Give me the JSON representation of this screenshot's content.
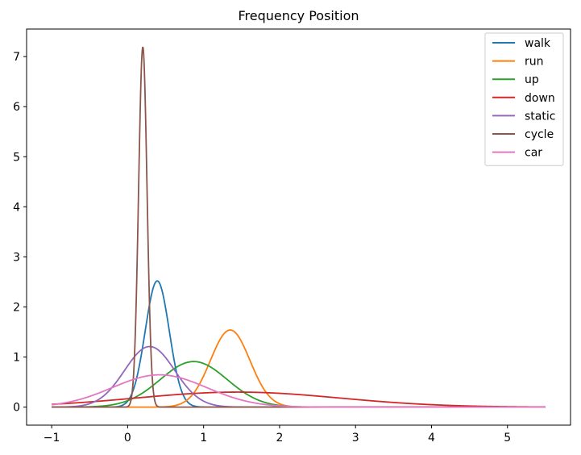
{
  "chart_data": {
    "type": "line",
    "title": "Frequency Position",
    "xlabel": "",
    "ylabel": "",
    "xlim": [
      -1.33,
      5.83
    ],
    "ylim": [
      -0.36,
      7.55
    ],
    "x_range": [
      -1,
      5.5
    ],
    "xticks": [
      -1,
      0,
      1,
      2,
      3,
      4,
      5
    ],
    "xtick_labels": [
      "−1",
      "0",
      "1",
      "2",
      "3",
      "4",
      "5"
    ],
    "yticks": [
      0,
      1,
      2,
      3,
      4,
      5,
      6,
      7
    ],
    "ytick_labels": [
      "0",
      "1",
      "2",
      "3",
      "4",
      "5",
      "6",
      "7"
    ],
    "grid": false,
    "legend_position": "top-right",
    "series": [
      {
        "name": "walk",
        "color": "#1f77b4",
        "distribution": "normal",
        "mean": 0.39,
        "std": 0.158,
        "peak": 2.52
      },
      {
        "name": "run",
        "color": "#ff7f0e",
        "distribution": "normal",
        "mean": 1.35,
        "std": 0.26,
        "peak": 1.54
      },
      {
        "name": "up",
        "color": "#2ca02c",
        "distribution": "normal",
        "mean": 0.87,
        "std": 0.44,
        "peak": 0.91
      },
      {
        "name": "down",
        "color": "#d62728",
        "distribution": "normal",
        "mean": 1.45,
        "std": 1.34,
        "peak": 0.3
      },
      {
        "name": "static",
        "color": "#9467bd",
        "distribution": "normal",
        "mean": 0.29,
        "std": 0.33,
        "peak": 1.21
      },
      {
        "name": "cycle",
        "color": "#8c564b",
        "distribution": "normal",
        "mean": 0.2,
        "std": 0.0555,
        "peak": 7.19
      },
      {
        "name": "car",
        "color": "#e377c2",
        "distribution": "normal",
        "mean": 0.42,
        "std": 0.62,
        "peak": 0.645
      }
    ]
  }
}
